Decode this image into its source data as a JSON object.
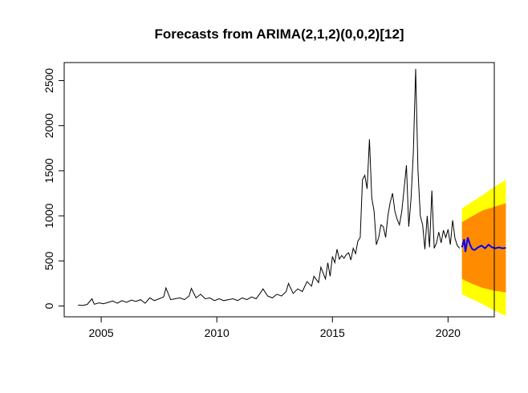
{
  "chart_data": {
    "type": "line",
    "title": "Forecasts from ARIMA(2,1,2)(0,0,2)[12]",
    "xlabel": "",
    "ylabel": "",
    "xlim": [
      2003.4,
      2022.0
    ],
    "ylim": [
      -120,
      2700
    ],
    "x_ticks": [
      2005,
      2010,
      2015,
      2020
    ],
    "y_ticks": [
      0,
      500,
      1000,
      1500,
      2000,
      2500
    ],
    "grid": false,
    "legend": "none",
    "colors": {
      "history": "#000000",
      "forecast": "#0000ff",
      "band_95": "#ffff00",
      "band_80": "#ff8c00"
    },
    "history": [
      [
        2004.0,
        10
      ],
      [
        2004.2,
        5
      ],
      [
        2004.4,
        18
      ],
      [
        2004.6,
        80
      ],
      [
        2004.7,
        20
      ],
      [
        2004.9,
        35
      ],
      [
        2005.1,
        25
      ],
      [
        2005.3,
        40
      ],
      [
        2005.5,
        55
      ],
      [
        2005.7,
        30
      ],
      [
        2005.9,
        60
      ],
      [
        2006.1,
        40
      ],
      [
        2006.3,
        65
      ],
      [
        2006.5,
        50
      ],
      [
        2006.7,
        70
      ],
      [
        2006.9,
        30
      ],
      [
        2007.1,
        90
      ],
      [
        2007.3,
        60
      ],
      [
        2007.5,
        80
      ],
      [
        2007.7,
        100
      ],
      [
        2007.8,
        200
      ],
      [
        2008.0,
        70
      ],
      [
        2008.2,
        80
      ],
      [
        2008.4,
        90
      ],
      [
        2008.6,
        70
      ],
      [
        2008.8,
        110
      ],
      [
        2008.9,
        195
      ],
      [
        2009.1,
        90
      ],
      [
        2009.3,
        130
      ],
      [
        2009.5,
        80
      ],
      [
        2009.7,
        90
      ],
      [
        2009.9,
        60
      ],
      [
        2010.1,
        80
      ],
      [
        2010.3,
        60
      ],
      [
        2010.5,
        70
      ],
      [
        2010.7,
        80
      ],
      [
        2010.9,
        60
      ],
      [
        2011.1,
        90
      ],
      [
        2011.3,
        70
      ],
      [
        2011.5,
        100
      ],
      [
        2011.7,
        80
      ],
      [
        2011.9,
        150
      ],
      [
        2012.0,
        190
      ],
      [
        2012.2,
        110
      ],
      [
        2012.4,
        90
      ],
      [
        2012.6,
        130
      ],
      [
        2012.8,
        110
      ],
      [
        2013.0,
        160
      ],
      [
        2013.1,
        250
      ],
      [
        2013.3,
        140
      ],
      [
        2013.5,
        190
      ],
      [
        2013.7,
        160
      ],
      [
        2013.9,
        270
      ],
      [
        2014.1,
        220
      ],
      [
        2014.2,
        330
      ],
      [
        2014.4,
        260
      ],
      [
        2014.5,
        430
      ],
      [
        2014.7,
        300
      ],
      [
        2014.8,
        480
      ],
      [
        2014.9,
        330
      ],
      [
        2015.0,
        550
      ],
      [
        2015.1,
        480
      ],
      [
        2015.2,
        630
      ],
      [
        2015.3,
        520
      ],
      [
        2015.4,
        560
      ],
      [
        2015.5,
        530
      ],
      [
        2015.6,
        570
      ],
      [
        2015.7,
        590
      ],
      [
        2015.8,
        510
      ],
      [
        2015.9,
        640
      ],
      [
        2016.0,
        580
      ],
      [
        2016.1,
        720
      ],
      [
        2016.2,
        760
      ],
      [
        2016.3,
        1400
      ],
      [
        2016.4,
        1450
      ],
      [
        2016.5,
        1300
      ],
      [
        2016.6,
        1850
      ],
      [
        2016.7,
        1200
      ],
      [
        2016.8,
        1050
      ],
      [
        2016.9,
        680
      ],
      [
        2017.0,
        760
      ],
      [
        2017.1,
        900
      ],
      [
        2017.2,
        880
      ],
      [
        2017.3,
        760
      ],
      [
        2017.4,
        1000
      ],
      [
        2017.5,
        1150
      ],
      [
        2017.6,
        1250
      ],
      [
        2017.7,
        1050
      ],
      [
        2017.8,
        960
      ],
      [
        2017.9,
        900
      ],
      [
        2018.0,
        1050
      ],
      [
        2018.1,
        1300
      ],
      [
        2018.2,
        1560
      ],
      [
        2018.3,
        880
      ],
      [
        2018.4,
        1200
      ],
      [
        2018.5,
        1700
      ],
      [
        2018.6,
        2630
      ],
      [
        2018.7,
        1500
      ],
      [
        2018.8,
        1000
      ],
      [
        2018.9,
        900
      ],
      [
        2019.0,
        630
      ],
      [
        2019.1,
        1000
      ],
      [
        2019.2,
        650
      ],
      [
        2019.3,
        1280
      ],
      [
        2019.4,
        640
      ],
      [
        2019.5,
        700
      ],
      [
        2019.6,
        820
      ],
      [
        2019.7,
        700
      ],
      [
        2019.8,
        840
      ],
      [
        2019.9,
        760
      ],
      [
        2020.0,
        850
      ],
      [
        2020.1,
        680
      ],
      [
        2020.2,
        950
      ],
      [
        2020.3,
        750
      ],
      [
        2020.4,
        670
      ],
      [
        2020.5,
        640
      ]
    ],
    "forecast": [
      [
        2020.6,
        650
      ],
      [
        2020.7,
        740
      ],
      [
        2020.75,
        600
      ],
      [
        2020.85,
        760
      ],
      [
        2020.95,
        680
      ],
      [
        2021.05,
        630
      ],
      [
        2021.15,
        620
      ],
      [
        2021.3,
        650
      ],
      [
        2021.45,
        670
      ],
      [
        2021.6,
        640
      ],
      [
        2021.75,
        680
      ],
      [
        2021.9,
        650
      ],
      [
        2022.05,
        640
      ],
      [
        2022.2,
        650
      ],
      [
        2022.35,
        640
      ],
      [
        2022.5,
        645
      ]
    ],
    "band_95": [
      [
        2020.6,
        130,
        1080
      ],
      [
        2021.0,
        80,
        1150
      ],
      [
        2021.5,
        20,
        1230
      ],
      [
        2022.0,
        -50,
        1320
      ],
      [
        2022.5,
        -110,
        1400
      ]
    ],
    "band_80": [
      [
        2020.6,
        300,
        930
      ],
      [
        2021.0,
        250,
        990
      ],
      [
        2021.5,
        200,
        1060
      ],
      [
        2022.0,
        170,
        1100
      ],
      [
        2022.5,
        150,
        1140
      ]
    ]
  }
}
